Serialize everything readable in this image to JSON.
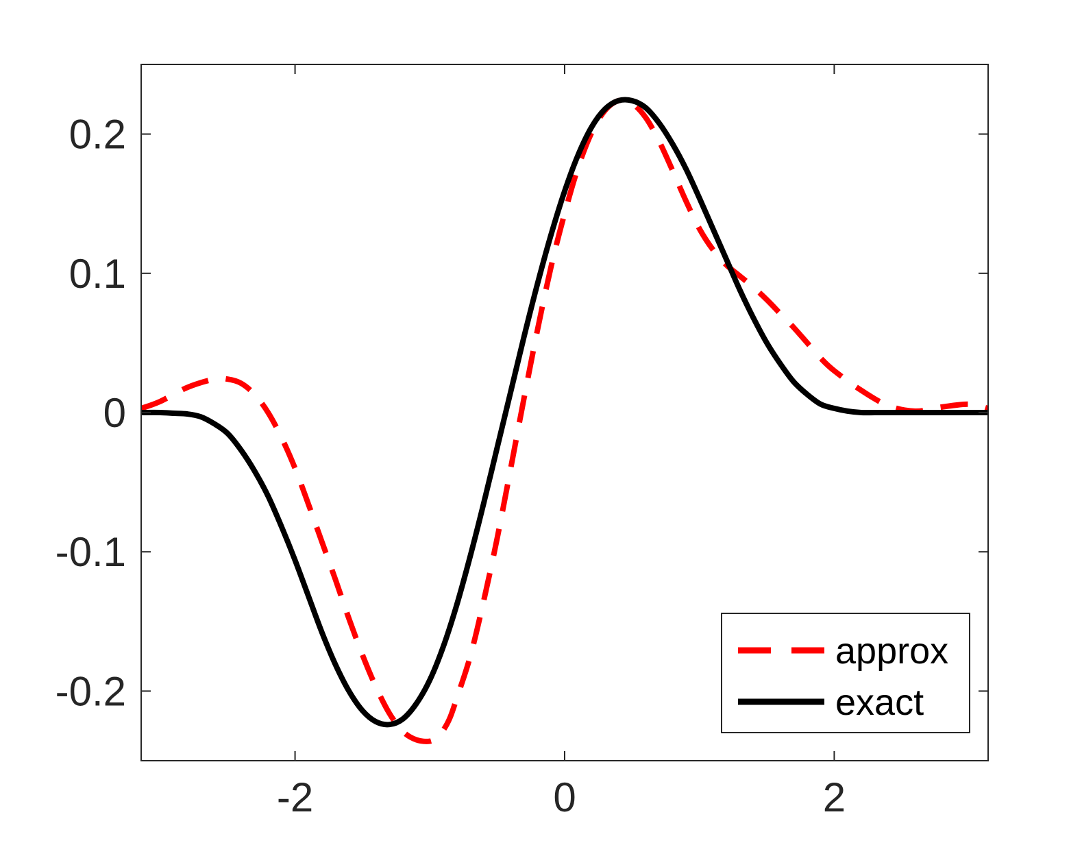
{
  "chart_data": {
    "type": "line",
    "title": "",
    "xlabel": "",
    "ylabel": "",
    "xlim": [
      -3.14159,
      3.14159
    ],
    "ylim": [
      -0.25,
      0.25
    ],
    "grid": false,
    "legend_position": "bottom-right",
    "x_ticks": [
      {
        "value": -2,
        "label": "-2"
      },
      {
        "value": 0,
        "label": "0"
      },
      {
        "value": 2,
        "label": "2"
      }
    ],
    "y_ticks": [
      {
        "value": 0.2,
        "label": "0.2"
      },
      {
        "value": 0.1,
        "label": "0.1"
      },
      {
        "value": 0,
        "label": "0"
      },
      {
        "value": -0.1,
        "label": "-0.1"
      },
      {
        "value": -0.2,
        "label": "-0.2"
      }
    ],
    "series": [
      {
        "name": "approx",
        "color": "#ff0000",
        "style": "dashed",
        "x": [
          -3.14,
          -3.0,
          -2.8,
          -2.6,
          -2.5,
          -2.4,
          -2.3,
          -2.2,
          -2.1,
          -2.0,
          -1.9,
          -1.8,
          -1.7,
          -1.6,
          -1.5,
          -1.4,
          -1.3,
          -1.2,
          -1.1,
          -1.0,
          -0.95,
          -0.9,
          -0.85,
          -0.8,
          -0.7,
          -0.6,
          -0.5,
          -0.4,
          -0.3,
          -0.2,
          -0.1,
          0.0,
          0.1,
          0.2,
          0.3,
          0.4,
          0.5,
          0.6,
          0.7,
          0.8,
          0.9,
          1.0,
          1.1,
          1.2,
          1.3,
          1.4,
          1.5,
          1.6,
          1.7,
          1.8,
          1.9,
          2.0,
          2.2,
          2.4,
          2.6,
          2.8,
          3.0,
          3.14
        ],
        "y": [
          0.003,
          0.008,
          0.018,
          0.024,
          0.024,
          0.021,
          0.013,
          0.0,
          -0.018,
          -0.04,
          -0.066,
          -0.093,
          -0.12,
          -0.148,
          -0.174,
          -0.197,
          -0.216,
          -0.229,
          -0.235,
          -0.236,
          -0.233,
          -0.228,
          -0.219,
          -0.205,
          -0.175,
          -0.135,
          -0.09,
          -0.04,
          0.011,
          0.06,
          0.105,
          0.143,
          0.176,
          0.201,
          0.217,
          0.224,
          0.222,
          0.212,
          0.195,
          0.174,
          0.152,
          0.132,
          0.117,
          0.106,
          0.098,
          0.09,
          0.081,
          0.071,
          0.061,
          0.05,
          0.039,
          0.03,
          0.016,
          0.005,
          0.001,
          0.004,
          0.006,
          0.003
        ]
      },
      {
        "name": "exact",
        "color": "#000000",
        "style": "solid",
        "x": [
          -3.14,
          -3.0,
          -2.9,
          -2.8,
          -2.7,
          -2.6,
          -2.5,
          -2.4,
          -2.3,
          -2.2,
          -2.1,
          -2.0,
          -1.9,
          -1.8,
          -1.7,
          -1.6,
          -1.5,
          -1.4,
          -1.3,
          -1.2,
          -1.1,
          -1.0,
          -0.9,
          -0.8,
          -0.7,
          -0.6,
          -0.5,
          -0.4,
          -0.3,
          -0.2,
          -0.1,
          0.0,
          0.1,
          0.2,
          0.3,
          0.4,
          0.5,
          0.6,
          0.7,
          0.8,
          0.9,
          1.0,
          1.1,
          1.2,
          1.3,
          1.4,
          1.5,
          1.6,
          1.7,
          1.8,
          1.9,
          2.0,
          2.1,
          2.2,
          2.3,
          2.4,
          2.5,
          2.6,
          2.7,
          2.8,
          2.9,
          3.0,
          3.14
        ],
        "y": [
          0.0,
          0.0,
          -0.0005,
          -0.001,
          -0.003,
          -0.008,
          -0.015,
          -0.027,
          -0.042,
          -0.06,
          -0.082,
          -0.106,
          -0.132,
          -0.158,
          -0.181,
          -0.2,
          -0.214,
          -0.222,
          -0.224,
          -0.22,
          -0.209,
          -0.192,
          -0.168,
          -0.138,
          -0.103,
          -0.065,
          -0.025,
          0.015,
          0.055,
          0.093,
          0.128,
          0.159,
          0.185,
          0.205,
          0.218,
          0.224,
          0.224,
          0.219,
          0.208,
          0.193,
          0.175,
          0.154,
          0.132,
          0.11,
          0.088,
          0.068,
          0.05,
          0.035,
          0.022,
          0.013,
          0.006,
          0.003,
          0.001,
          0.0,
          0.0,
          0.0,
          0.0,
          0.0,
          0.0,
          0.0,
          0.0,
          0.0,
          0.0
        ]
      }
    ]
  }
}
